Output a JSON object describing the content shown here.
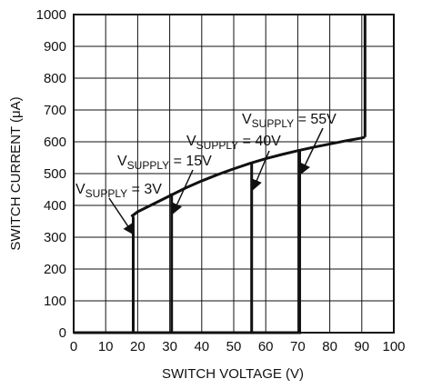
{
  "chart_data": {
    "type": "line",
    "title": "",
    "xlabel": "SWITCH VOLTAGE (V)",
    "ylabel": "SWITCH CURRENT (μA)",
    "xlim": [
      0,
      100
    ],
    "ylim": [
      0,
      1000
    ],
    "x_ticks": [
      "0",
      "10",
      "20",
      "30",
      "40",
      "50",
      "60",
      "70",
      "80",
      "90",
      "100"
    ],
    "y_ticks": [
      "0",
      "100",
      "200",
      "300",
      "400",
      "500",
      "600",
      "700",
      "800",
      "900",
      "1000"
    ],
    "grid": true,
    "legend": "none",
    "envelope": {
      "name": "",
      "x": [
        18,
        20,
        25,
        30,
        35,
        40,
        45,
        50,
        55,
        60,
        65,
        70,
        75,
        80,
        85,
        90,
        91
      ],
      "y": [
        365,
        380,
        405,
        430,
        455,
        477,
        497,
        515,
        532,
        547,
        560,
        572,
        583,
        593,
        603,
        612,
        615
      ]
    },
    "breakdown_line": {
      "x": [
        91,
        91
      ],
      "y": [
        615,
        1000
      ]
    },
    "series": [
      {
        "name": "VSUPPLY = 3V",
        "x": [
          0,
          18.6,
          18.6
        ],
        "y": [
          0,
          0,
          365
        ]
      },
      {
        "name": "VSUPPLY = 15V",
        "x": [
          0,
          30.6,
          30.6
        ],
        "y": [
          0,
          0,
          438
        ]
      },
      {
        "name": "VSUPPLY = 40V",
        "x": [
          0,
          55.6,
          55.6
        ],
        "y": [
          0,
          0,
          535
        ]
      },
      {
        "name": "VSUPPLY = 55V",
        "x": [
          0,
          70.6,
          70.6
        ],
        "y": [
          0,
          0,
          572
        ]
      }
    ],
    "annotations": [
      {
        "main": "V",
        "sub": "SUPPLY",
        "rest": " = 3V",
        "arrow_to": [
          18.6,
          310
        ]
      },
      {
        "main": "V",
        "sub": "SUPPLY",
        "rest": " = 15V",
        "arrow_to": [
          31,
          375
        ]
      },
      {
        "main": "V",
        "sub": "SUPPLY",
        "rest": " = 40V",
        "arrow_to": [
          56,
          450
        ]
      },
      {
        "main": "V",
        "sub": "SUPPLY",
        "rest": " = 55V",
        "arrow_to": [
          71,
          500
        ]
      }
    ]
  }
}
